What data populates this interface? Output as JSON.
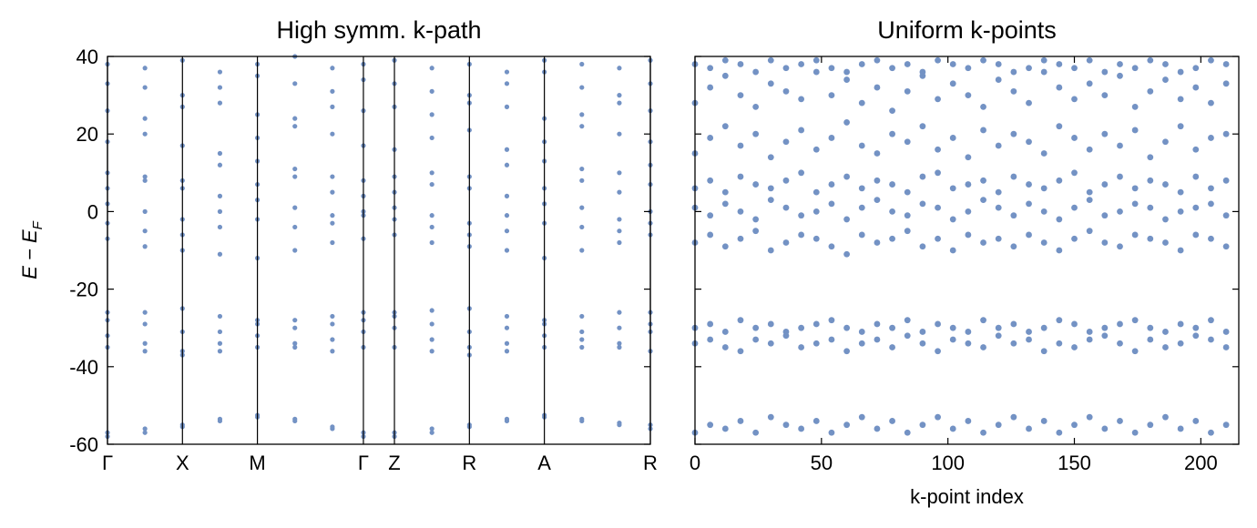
{
  "chart_data": [
    {
      "type": "scatter",
      "title": "High symm. k-path",
      "ylabel": "E − E",
      "ylabel_sub": "F",
      "xlim": [
        0,
        3.621
      ],
      "ylim": [
        -60,
        40
      ],
      "xticks": [
        {
          "value": 0,
          "label": "Γ"
        },
        {
          "value": 0.5,
          "label": "X"
        },
        {
          "value": 1.0,
          "label": "M"
        },
        {
          "value": 1.707,
          "label": "Γ"
        },
        {
          "value": 1.914,
          "label": "Z"
        },
        {
          "value": 2.414,
          "label": "R"
        },
        {
          "value": 2.914,
          "label": "A"
        },
        {
          "value": 3.621,
          "label": "R"
        }
      ],
      "yticks": [
        -60,
        -40,
        -20,
        0,
        20,
        40
      ],
      "ytick_labels": true,
      "vlines": true,
      "color": "#5b7fba",
      "x": [
        0,
        0.25,
        0.5,
        0.75,
        1.0,
        1.25,
        1.5,
        1.707,
        1.914,
        2.164,
        2.414,
        2.664,
        2.914,
        3.164,
        3.414,
        3.621
      ],
      "series": [
        {
          "values": [
            -57,
            -56,
            -55,
            -53.5,
            -52.5,
            -53.5,
            -55.5,
            -57,
            -57,
            -56,
            -55,
            -53.5,
            -52.5,
            -53.5,
            -54.5,
            -55
          ]
        },
        {
          "values": [
            -58,
            -57,
            -55.5,
            -54,
            -53,
            -54,
            -56,
            -58,
            -58,
            -57,
            -55.5,
            -54,
            -53,
            -54,
            -55,
            -56
          ]
        },
        {
          "values": [
            -26,
            -26,
            -25,
            -27,
            -28,
            -28,
            -27,
            -26,
            -26,
            -25.5,
            -25,
            -27,
            -28,
            -27,
            -26,
            -26
          ]
        },
        {
          "values": [
            -28,
            -29,
            -31,
            -31,
            -29,
            -30,
            -29,
            -28,
            -27,
            -29,
            -31,
            -30,
            -29,
            -31,
            -30,
            -29
          ]
        },
        {
          "values": [
            -32,
            -34,
            -36,
            -34,
            -32,
            -34,
            -33,
            -31,
            -30,
            -33,
            -35,
            -34,
            -32,
            -33,
            -34,
            -31
          ]
        },
        {
          "values": [
            -35,
            -36,
            -37,
            -36,
            -35,
            -35,
            -36,
            -35,
            -35,
            -36,
            -37,
            -36,
            -35,
            -35,
            -35,
            -36
          ]
        },
        {
          "values": [
            -7,
            -9,
            -10,
            -11,
            -12,
            -10,
            -8,
            -7,
            -6,
            -8,
            -9,
            -10,
            -12,
            -10,
            -8,
            -6
          ]
        },
        {
          "values": [
            -3,
            -5,
            -6,
            -4,
            -2,
            -4,
            -3,
            -1,
            -2,
            -4,
            -6,
            -5,
            -3,
            -4,
            -5,
            -3
          ]
        },
        {
          "values": [
            2,
            0,
            -2,
            0,
            3,
            1,
            -1,
            0,
            1,
            -1,
            -3,
            -1,
            2,
            1,
            -2,
            0
          ]
        },
        {
          "values": [
            6,
            8,
            6,
            4,
            7,
            9,
            5,
            4,
            5,
            7,
            6,
            4,
            6,
            8,
            5,
            7
          ]
        },
        {
          "values": [
            10,
            9,
            8,
            12,
            13,
            11,
            9,
            8,
            9,
            10,
            9,
            12,
            13,
            11,
            10,
            12
          ]
        },
        {
          "values": [
            18,
            20,
            17,
            15,
            19,
            22,
            20,
            17,
            16,
            19,
            21,
            16,
            18,
            22,
            20,
            18
          ]
        },
        {
          "values": [
            26,
            24,
            27,
            28,
            25,
            24,
            27,
            26,
            27,
            25,
            28,
            27,
            24,
            25,
            28,
            26
          ]
        },
        {
          "values": [
            33,
            32,
            30,
            32,
            35,
            33,
            31,
            34,
            33,
            31,
            30,
            33,
            36,
            32,
            30,
            33
          ]
        },
        {
          "values": [
            38,
            37,
            39,
            36,
            38,
            40,
            37,
            38,
            39,
            37,
            38,
            36,
            39,
            38,
            37,
            39
          ]
        }
      ]
    },
    {
      "type": "scatter",
      "title": "Uniform k-points",
      "xlabel": "k-point index",
      "xlim": [
        0,
        215
      ],
      "ylim": [
        -60,
        40
      ],
      "xticks": [
        0,
        50,
        100,
        150,
        200
      ],
      "yticks": [
        -60,
        -40,
        -20,
        0,
        20,
        40
      ],
      "ytick_labels": false,
      "vlines": false,
      "color": "#5b7fba",
      "x": [
        0,
        6,
        12,
        18,
        24,
        30,
        36,
        42,
        48,
        54,
        60,
        66,
        72,
        78,
        84,
        90,
        96,
        102,
        108,
        114,
        120,
        126,
        132,
        138,
        144,
        150,
        156,
        162,
        168,
        174,
        180,
        186,
        192,
        198,
        204,
        210
      ],
      "series": [
        {
          "values": [
            -57,
            -55,
            -56,
            -54,
            -57,
            -53,
            -55,
            -56,
            -54,
            -57,
            -55,
            -53,
            -56,
            -54,
            -57,
            -55,
            -53,
            -56,
            -54,
            -57,
            -55,
            -53,
            -56,
            -54,
            -57,
            -55,
            -53,
            -56,
            -54,
            -57,
            -55,
            -53,
            -56,
            -54,
            -57,
            -55
          ]
        },
        {
          "values": [
            -30,
            -29,
            -31,
            -28,
            -30,
            -29,
            -31,
            -30,
            -29,
            -28,
            -30,
            -31,
            -29,
            -30,
            -28,
            -31,
            -29,
            -30,
            -31,
            -28,
            -30,
            -29,
            -31,
            -30,
            -28,
            -29,
            -31,
            -30,
            -29,
            -28,
            -30,
            -31,
            -29,
            -30,
            -28,
            -31
          ]
        },
        {
          "values": [
            -34,
            -33,
            -35,
            -36,
            -33,
            -34,
            -32,
            -35,
            -34,
            -33,
            -36,
            -34,
            -33,
            -35,
            -32,
            -34,
            -36,
            -33,
            -34,
            -35,
            -32,
            -34,
            -33,
            -36,
            -34,
            -35,
            -33,
            -32,
            -34,
            -36,
            -33,
            -35,
            -34,
            -32,
            -33,
            -35
          ]
        },
        {
          "values": [
            -8,
            -6,
            -9,
            -7,
            -5,
            -10,
            -8,
            -6,
            -7,
            -9,
            -11,
            -6,
            -8,
            -7,
            -5,
            -9,
            -7,
            -10,
            -6,
            -8,
            -7,
            -9,
            -6,
            -8,
            -10,
            -7,
            -5,
            -8,
            -9,
            -6,
            -7,
            -8,
            -10,
            -6,
            -7,
            -9
          ]
        },
        {
          "values": [
            1,
            -1,
            2,
            0,
            -2,
            3,
            1,
            -1,
            0,
            2,
            -2,
            1,
            3,
            0,
            -1,
            2,
            1,
            -2,
            0,
            3,
            1,
            -1,
            2,
            0,
            -2,
            1,
            3,
            -1,
            0,
            2,
            1,
            -2,
            0,
            1,
            2,
            -1
          ]
        },
        {
          "values": [
            6,
            8,
            5,
            9,
            7,
            6,
            8,
            10,
            5,
            7,
            9,
            6,
            8,
            7,
            5,
            9,
            10,
            6,
            7,
            8,
            5,
            9,
            7,
            6,
            8,
            10,
            5,
            7,
            9,
            6,
            8,
            7,
            5,
            9,
            6,
            8
          ]
        },
        {
          "values": [
            15,
            19,
            22,
            17,
            20,
            14,
            18,
            21,
            16,
            19,
            23,
            17,
            15,
            20,
            18,
            22,
            16,
            19,
            14,
            21,
            17,
            20,
            18,
            15,
            22,
            19,
            16,
            20,
            17,
            21,
            14,
            18,
            22,
            16,
            19,
            20
          ]
        },
        {
          "values": [
            28,
            32,
            35,
            30,
            27,
            33,
            31,
            29,
            36,
            30,
            34,
            28,
            32,
            26,
            31,
            35,
            29,
            33,
            30,
            27,
            34,
            31,
            28,
            36,
            32,
            29,
            33,
            30,
            35,
            27,
            31,
            34,
            29,
            32,
            28,
            33
          ]
        },
        {
          "values": [
            38,
            37,
            39,
            38,
            36,
            39,
            37,
            38,
            39,
            37,
            36,
            38,
            39,
            37,
            38,
            36,
            39,
            38,
            37,
            39,
            38,
            36,
            37,
            39,
            38,
            37,
            39,
            36,
            38,
            37,
            39,
            38,
            36,
            37,
            39,
            38
          ]
        }
      ]
    }
  ]
}
